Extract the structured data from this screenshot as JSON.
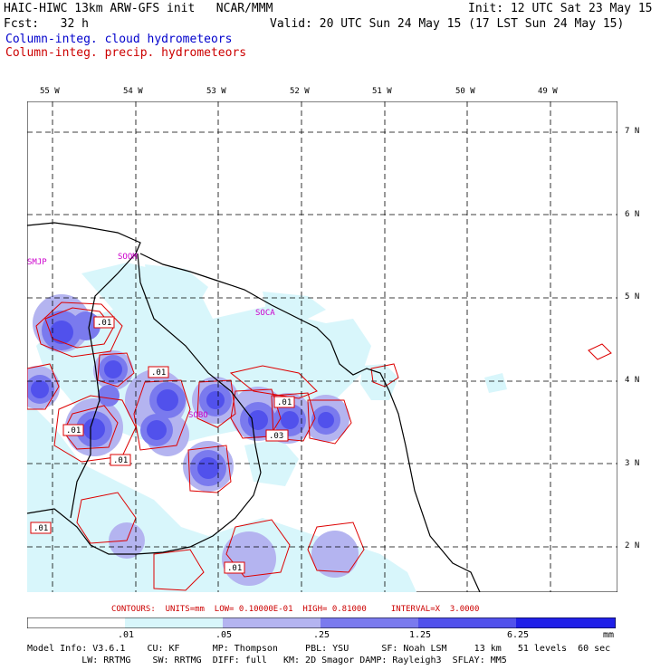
{
  "header": {
    "left_line1": "HAIC-HIWC 13km ARW-GFS init   NCAR/MMM",
    "right_line1": "Init: 12 UTC Sat 23 May 15",
    "left_line2": "Fcst:   32 h",
    "right_line2": "Valid: 20 UTC Sun 24 May 15 (17 LST Sun 24 May 15)",
    "legend_cloud": "Column-integ. cloud hydrometeors",
    "legend_precip": "Column-integ. precip. hydrometeors"
  },
  "longitude_labels": [
    "55 W",
    "54 W",
    "53 W",
    "52 W",
    "51 W",
    "50 W",
    "49 W"
  ],
  "latitude_labels": [
    "7 N",
    "6 N",
    "5 N",
    "4 N",
    "3 N",
    "2 N"
  ],
  "place_labels": [
    "SMJP",
    "SOOM",
    "SOCA",
    "SOBO"
  ],
  "contour_labels": [
    ".01",
    ".01",
    ".01",
    ".01",
    ".01",
    ".03",
    ".01",
    ".01"
  ],
  "contour_info": "CONTOURS:  UNITS=mm  LOW= 0.10000E-01  HIGH= 0.81000     INTERVAL=X  3.0000",
  "colorbar": {
    "tick_labels": [
      ".01",
      ".05",
      ".25",
      "1.25",
      "6.25"
    ],
    "unit": "mm",
    "colors": [
      "#ffffff",
      "#d8f6fb",
      "#b4b4f0",
      "#7a7aee",
      "#5151ec",
      "#2020e8"
    ]
  },
  "model_info": {
    "line1": "Model Info: V3.6.1    CU: KF      MP: Thompson     PBL: YSU      SF: Noah LSM     13 km   51 levels  60 sec",
    "line2": "          LW: RRTMG    SW: RRTMG  DIFF: full   KM: 2D Smagor DAMP: Rayleigh3  SFLAY: MM5"
  },
  "colors": {
    "cloud_title": "#0000cc",
    "precip_title": "#cc0000",
    "place_labels": "#cc00cc",
    "precip_contour": "#dd0000",
    "coastline": "#000000",
    "grid": "#000000"
  }
}
